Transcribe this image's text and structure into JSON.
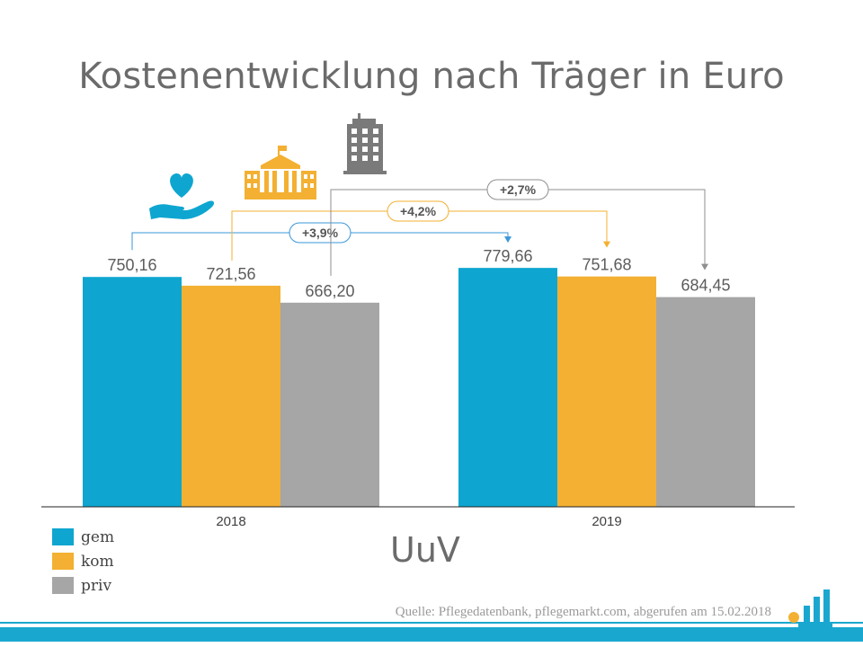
{
  "title": "Kostenentwicklung nach Träger in Euro",
  "subtitle": "UuV",
  "source": "Quelle: Pflegedatenbank, pflegemarkt.com, abgerufen am 15.02.2018",
  "colors": {
    "gem": "#0ea6d0",
    "kom": "#f3b032",
    "priv": "#a6a6a6",
    "text": "#5c5c5c"
  },
  "icons": {
    "gem": "heart-hand-icon",
    "kom": "town-hall-icon",
    "priv": "office-tower-icon"
  },
  "chart_data": {
    "type": "bar",
    "categories": [
      "2018",
      "2019"
    ],
    "series": [
      {
        "name": "gem",
        "values": [
          750.16,
          779.66
        ],
        "labels": [
          "750,16",
          "779,66"
        ]
      },
      {
        "name": "kom",
        "values": [
          721.56,
          751.68
        ],
        "labels": [
          "721,56",
          "751,68"
        ]
      },
      {
        "name": "priv",
        "values": [
          666.2,
          684.45
        ],
        "labels": [
          "666,20",
          "684,45"
        ]
      }
    ],
    "changes": [
      {
        "series": "gem",
        "label": "+3,9%"
      },
      {
        "series": "kom",
        "label": "+4,2%"
      },
      {
        "series": "priv",
        "label": "+2,7%"
      }
    ],
    "ylim": [
      0,
      1000
    ],
    "grid": false,
    "legend": "bottom-left"
  }
}
